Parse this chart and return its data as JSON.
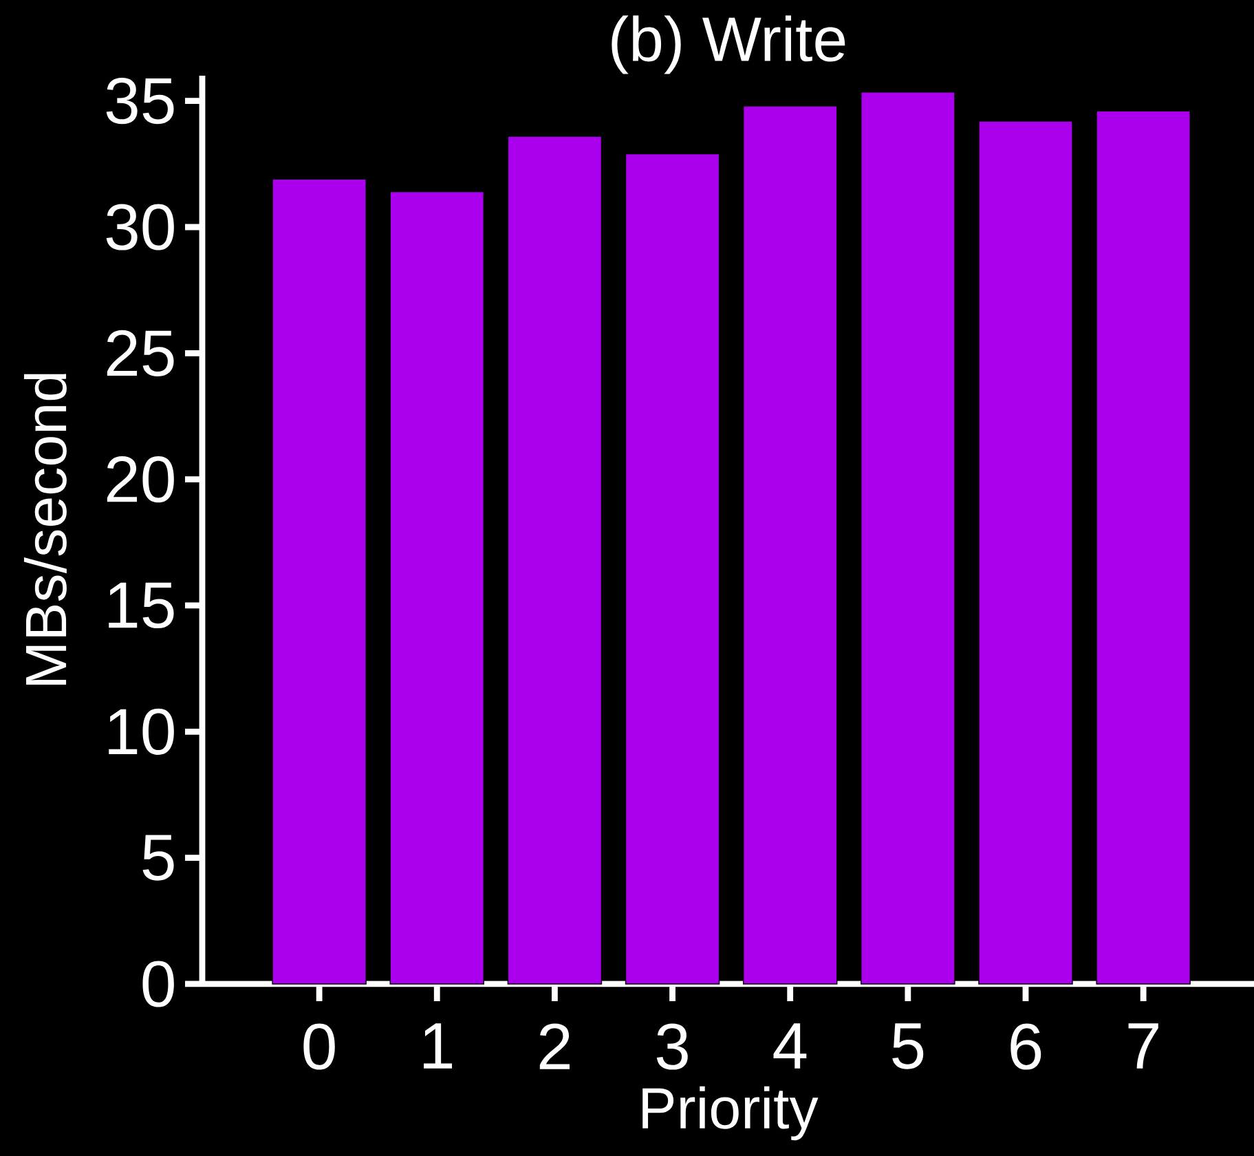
{
  "chart_data": {
    "type": "bar",
    "title": "(b) Write",
    "xlabel": "Priority",
    "ylabel": "MBs/second",
    "categories": [
      "0",
      "1",
      "2",
      "3",
      "4",
      "5",
      "6",
      "7"
    ],
    "values": [
      31.9,
      31.4,
      33.6,
      32.9,
      34.8,
      35.35,
      34.2,
      34.6
    ],
    "color": "#aa00ee",
    "ylim": [
      0,
      36
    ],
    "yticks": [
      0,
      5,
      10,
      15,
      20,
      25,
      30,
      35
    ],
    "grid": false
  }
}
